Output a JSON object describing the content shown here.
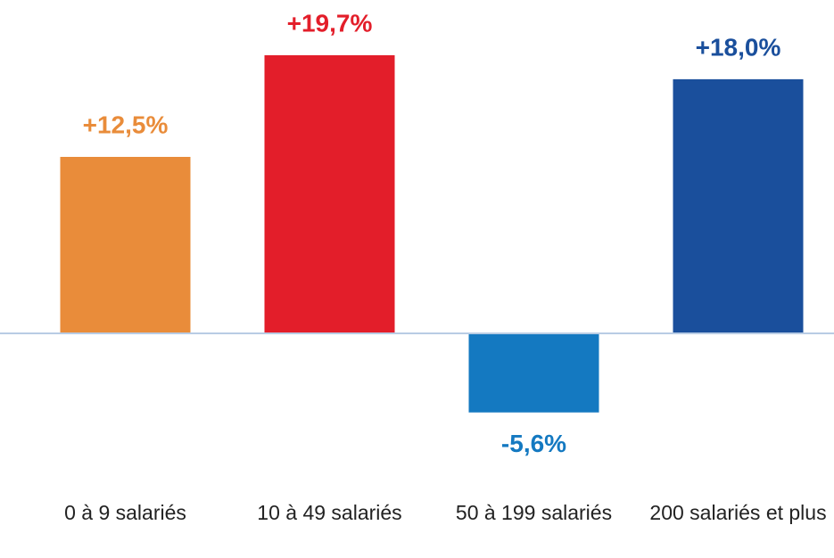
{
  "chart_data": {
    "type": "bar",
    "categories": [
      "0 à 9 salariés",
      "10 à 49 salariés",
      "50 à 199 salariés",
      "200 salariés et plus"
    ],
    "values": [
      12.5,
      19.7,
      -5.6,
      18.0
    ],
    "value_labels": [
      "+12,5%",
      "+19,7%",
      "-5,6%",
      "+18,0%"
    ],
    "colors": [
      "#e98c3a",
      "#e31e2a",
      "#1479c1",
      "#1a4f9c"
    ]
  }
}
